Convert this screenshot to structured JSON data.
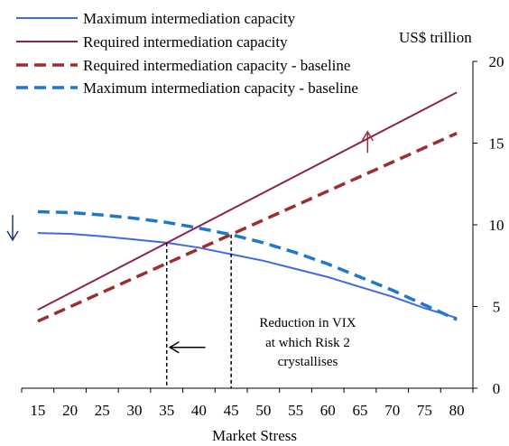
{
  "chart_data": {
    "type": "line",
    "xlabel": "Market Stress",
    "ylabel": "US$ trillion",
    "x_ticks": [
      15,
      20,
      25,
      30,
      35,
      40,
      45,
      50,
      55,
      60,
      65,
      70,
      75,
      80
    ],
    "y_ticks": [
      0,
      5,
      10,
      15,
      20
    ],
    "xlim": [
      12.5,
      82.5
    ],
    "ylim": [
      0,
      20
    ],
    "y_axis_side": "right",
    "legend_position": "top-left",
    "series": [
      {
        "name": "Maximum intermediation capacity",
        "color": "#4169e1",
        "style": "solid",
        "x": [
          15,
          20,
          25,
          30,
          35,
          40,
          45,
          50,
          55,
          60,
          65,
          70,
          75,
          80
        ],
        "values": [
          9.5,
          9.45,
          9.3,
          9.1,
          8.9,
          8.6,
          8.2,
          7.8,
          7.3,
          6.8,
          6.2,
          5.6,
          4.9,
          4.3
        ]
      },
      {
        "name": "Required intermediation capacity",
        "color": "#8b2252",
        "style": "solid",
        "x": [
          15,
          80
        ],
        "values": [
          4.8,
          18.1
        ]
      },
      {
        "name": "Required intermediation capacity - baseline",
        "color": "#9b2f2f",
        "style": "dashed",
        "x": [
          15,
          80
        ],
        "values": [
          4.1,
          15.6
        ]
      },
      {
        "name": "Maximum intermediation capacity - baseline",
        "color": "#1f77c8",
        "style": "dashed",
        "x": [
          15,
          20,
          25,
          30,
          35,
          40,
          45,
          50,
          55,
          60,
          65,
          70,
          75,
          80
        ],
        "values": [
          10.8,
          10.75,
          10.6,
          10.4,
          10.15,
          9.8,
          9.4,
          8.9,
          8.3,
          7.6,
          6.8,
          6.0,
          5.1,
          4.2
        ]
      }
    ],
    "annotations": {
      "text_lines": [
        "Reduction in VIX",
        "at which Risk 2",
        "crystallises"
      ],
      "vline_x": [
        35,
        45
      ],
      "left_arrow": {
        "from_x": 41,
        "to_x": 35.5,
        "y": 2.5
      },
      "down_arrow": {
        "x": 12.5,
        "y_from": 10.6,
        "y_to": 9.4
      },
      "up_arrow": {
        "x": 67,
        "y_from": 14.4,
        "y_to": 15.7
      }
    }
  }
}
